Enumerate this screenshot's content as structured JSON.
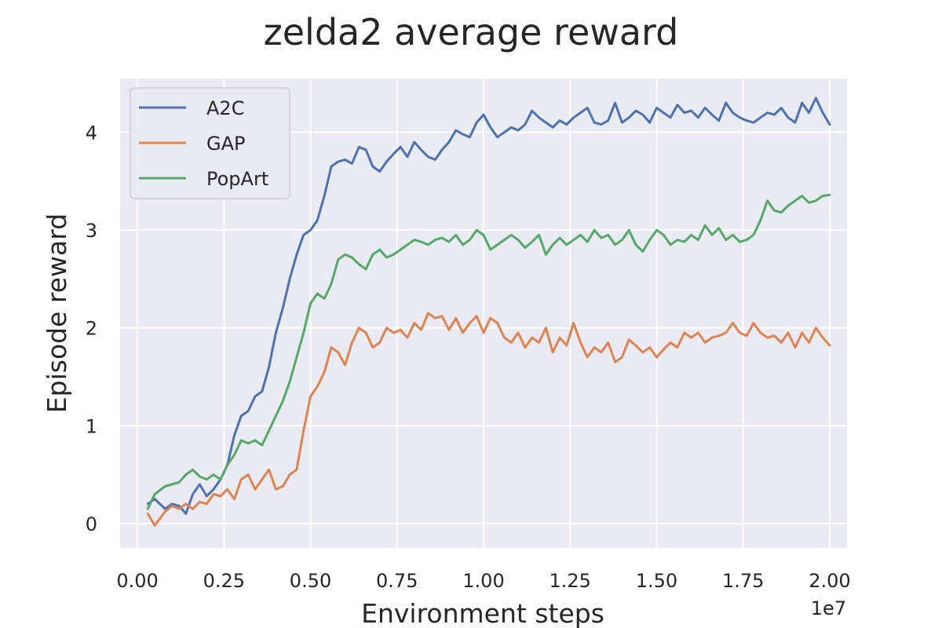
{
  "chart_data": {
    "type": "line",
    "title": "zelda2 average reward",
    "xlabel": "Environment steps",
    "ylabel": "Episode reward",
    "x_offset_label": "1e7",
    "xlim": [
      -0.05,
      2.05
    ],
    "ylim": [
      -0.25,
      4.55
    ],
    "x_ticks": [
      0.0,
      0.25,
      0.5,
      0.75,
      1.0,
      1.25,
      1.5,
      1.75,
      2.0
    ],
    "x_tick_labels": [
      "0.00",
      "0.25",
      "0.50",
      "0.75",
      "1.00",
      "1.25",
      "1.50",
      "1.75",
      "2.00"
    ],
    "y_ticks": [
      0,
      1,
      2,
      3,
      4
    ],
    "y_tick_labels": [
      "0",
      "1",
      "2",
      "3",
      "4"
    ],
    "grid": true,
    "legend_position": "top-left",
    "series": [
      {
        "name": "A2C",
        "color": "#4c72b0",
        "x": [
          0.03,
          0.05,
          0.08,
          0.1,
          0.12,
          0.14,
          0.16,
          0.18,
          0.2,
          0.22,
          0.24,
          0.26,
          0.28,
          0.3,
          0.32,
          0.34,
          0.36,
          0.38,
          0.4,
          0.42,
          0.44,
          0.46,
          0.48,
          0.5,
          0.52,
          0.54,
          0.56,
          0.58,
          0.6,
          0.62,
          0.64,
          0.66,
          0.68,
          0.7,
          0.72,
          0.74,
          0.76,
          0.78,
          0.8,
          0.82,
          0.84,
          0.86,
          0.88,
          0.9,
          0.92,
          0.94,
          0.96,
          0.98,
          1.0,
          1.02,
          1.04,
          1.06,
          1.08,
          1.1,
          1.12,
          1.14,
          1.16,
          1.18,
          1.2,
          1.22,
          1.24,
          1.26,
          1.28,
          1.3,
          1.32,
          1.34,
          1.36,
          1.38,
          1.4,
          1.42,
          1.44,
          1.46,
          1.48,
          1.5,
          1.52,
          1.54,
          1.56,
          1.58,
          1.6,
          1.62,
          1.64,
          1.66,
          1.68,
          1.7,
          1.72,
          1.74,
          1.76,
          1.78,
          1.8,
          1.82,
          1.84,
          1.86,
          1.88,
          1.9,
          1.92,
          1.94,
          1.96,
          1.98,
          2.0
        ],
        "y": [
          0.2,
          0.25,
          0.15,
          0.2,
          0.18,
          0.1,
          0.3,
          0.4,
          0.28,
          0.35,
          0.45,
          0.6,
          0.9,
          1.1,
          1.15,
          1.3,
          1.35,
          1.6,
          1.95,
          2.2,
          2.5,
          2.75,
          2.95,
          3.0,
          3.1,
          3.35,
          3.65,
          3.7,
          3.72,
          3.68,
          3.85,
          3.82,
          3.65,
          3.6,
          3.7,
          3.78,
          3.85,
          3.75,
          3.9,
          3.82,
          3.75,
          3.72,
          3.82,
          3.9,
          4.02,
          3.98,
          3.95,
          4.1,
          4.18,
          4.05,
          3.95,
          4.0,
          4.05,
          4.02,
          4.08,
          4.22,
          4.15,
          4.1,
          4.05,
          4.12,
          4.08,
          4.15,
          4.2,
          4.25,
          4.1,
          4.08,
          4.12,
          4.3,
          4.1,
          4.15,
          4.22,
          4.18,
          4.1,
          4.25,
          4.2,
          4.15,
          4.28,
          4.2,
          4.22,
          4.15,
          4.25,
          4.18,
          4.12,
          4.3,
          4.2,
          4.15,
          4.12,
          4.1,
          4.15,
          4.2,
          4.18,
          4.25,
          4.15,
          4.1,
          4.3,
          4.2,
          4.35,
          4.2,
          4.08
        ]
      },
      {
        "name": "GAP",
        "color": "#dd8452",
        "x": [
          0.03,
          0.05,
          0.08,
          0.1,
          0.12,
          0.14,
          0.16,
          0.18,
          0.2,
          0.22,
          0.24,
          0.26,
          0.28,
          0.3,
          0.32,
          0.34,
          0.36,
          0.38,
          0.4,
          0.42,
          0.44,
          0.46,
          0.48,
          0.5,
          0.52,
          0.54,
          0.56,
          0.58,
          0.6,
          0.62,
          0.64,
          0.66,
          0.68,
          0.7,
          0.72,
          0.74,
          0.76,
          0.78,
          0.8,
          0.82,
          0.84,
          0.86,
          0.88,
          0.9,
          0.92,
          0.94,
          0.96,
          0.98,
          1.0,
          1.02,
          1.04,
          1.06,
          1.08,
          1.1,
          1.12,
          1.14,
          1.16,
          1.18,
          1.2,
          1.22,
          1.24,
          1.26,
          1.28,
          1.3,
          1.32,
          1.34,
          1.36,
          1.38,
          1.4,
          1.42,
          1.44,
          1.46,
          1.48,
          1.5,
          1.52,
          1.54,
          1.56,
          1.58,
          1.6,
          1.62,
          1.64,
          1.66,
          1.68,
          1.7,
          1.72,
          1.74,
          1.76,
          1.78,
          1.8,
          1.82,
          1.84,
          1.86,
          1.88,
          1.9,
          1.92,
          1.94,
          1.96,
          1.98,
          2.0
        ],
        "y": [
          0.1,
          -0.02,
          0.12,
          0.18,
          0.15,
          0.2,
          0.15,
          0.22,
          0.2,
          0.3,
          0.28,
          0.35,
          0.25,
          0.45,
          0.5,
          0.35,
          0.45,
          0.55,
          0.35,
          0.38,
          0.5,
          0.55,
          0.95,
          1.3,
          1.4,
          1.55,
          1.8,
          1.75,
          1.62,
          1.85,
          2.0,
          1.95,
          1.8,
          1.85,
          2.0,
          1.95,
          1.98,
          1.9,
          2.05,
          1.98,
          2.15,
          2.1,
          2.12,
          1.98,
          2.1,
          1.95,
          2.05,
          2.12,
          1.95,
          2.1,
          2.05,
          1.9,
          1.85,
          1.95,
          1.8,
          1.9,
          1.85,
          2.0,
          1.75,
          1.9,
          1.82,
          2.05,
          1.85,
          1.7,
          1.8,
          1.75,
          1.85,
          1.65,
          1.7,
          1.88,
          1.82,
          1.75,
          1.8,
          1.7,
          1.78,
          1.85,
          1.8,
          1.95,
          1.9,
          1.95,
          1.85,
          1.9,
          1.92,
          1.95,
          2.05,
          1.95,
          1.92,
          2.05,
          1.95,
          1.9,
          1.92,
          1.85,
          1.95,
          1.8,
          1.95,
          1.85,
          2.0,
          1.9,
          1.82
        ]
      },
      {
        "name": "PopArt",
        "color": "#55a868",
        "x": [
          0.03,
          0.05,
          0.08,
          0.1,
          0.12,
          0.14,
          0.16,
          0.18,
          0.2,
          0.22,
          0.24,
          0.26,
          0.28,
          0.3,
          0.32,
          0.34,
          0.36,
          0.38,
          0.4,
          0.42,
          0.44,
          0.46,
          0.48,
          0.5,
          0.52,
          0.54,
          0.56,
          0.58,
          0.6,
          0.62,
          0.64,
          0.66,
          0.68,
          0.7,
          0.72,
          0.74,
          0.76,
          0.78,
          0.8,
          0.82,
          0.84,
          0.86,
          0.88,
          0.9,
          0.92,
          0.94,
          0.96,
          0.98,
          1.0,
          1.02,
          1.04,
          1.06,
          1.08,
          1.1,
          1.12,
          1.14,
          1.16,
          1.18,
          1.2,
          1.22,
          1.24,
          1.26,
          1.28,
          1.3,
          1.32,
          1.34,
          1.36,
          1.38,
          1.4,
          1.42,
          1.44,
          1.46,
          1.48,
          1.5,
          1.52,
          1.54,
          1.56,
          1.58,
          1.6,
          1.62,
          1.64,
          1.66,
          1.68,
          1.7,
          1.72,
          1.74,
          1.76,
          1.78,
          1.8,
          1.82,
          1.84,
          1.86,
          1.88,
          1.9,
          1.92,
          1.94,
          1.96,
          1.98,
          2.0
        ],
        "y": [
          0.15,
          0.3,
          0.38,
          0.4,
          0.42,
          0.5,
          0.55,
          0.48,
          0.45,
          0.5,
          0.45,
          0.6,
          0.7,
          0.85,
          0.82,
          0.85,
          0.8,
          0.95,
          1.1,
          1.25,
          1.45,
          1.7,
          1.95,
          2.25,
          2.35,
          2.3,
          2.45,
          2.7,
          2.75,
          2.72,
          2.65,
          2.6,
          2.75,
          2.8,
          2.72,
          2.75,
          2.8,
          2.85,
          2.9,
          2.88,
          2.85,
          2.9,
          2.92,
          2.88,
          2.95,
          2.85,
          2.9,
          3.0,
          2.95,
          2.8,
          2.85,
          2.9,
          2.95,
          2.9,
          2.82,
          2.88,
          2.95,
          2.75,
          2.85,
          2.92,
          2.85,
          2.9,
          2.95,
          2.88,
          3.0,
          2.92,
          2.95,
          2.85,
          2.9,
          3.0,
          2.85,
          2.78,
          2.9,
          3.0,
          2.95,
          2.85,
          2.9,
          2.88,
          2.95,
          2.9,
          3.05,
          2.95,
          3.02,
          2.9,
          2.95,
          2.88,
          2.9,
          2.95,
          3.1,
          3.3,
          3.2,
          3.18,
          3.25,
          3.3,
          3.35,
          3.28,
          3.3,
          3.35,
          3.36
        ]
      }
    ]
  }
}
